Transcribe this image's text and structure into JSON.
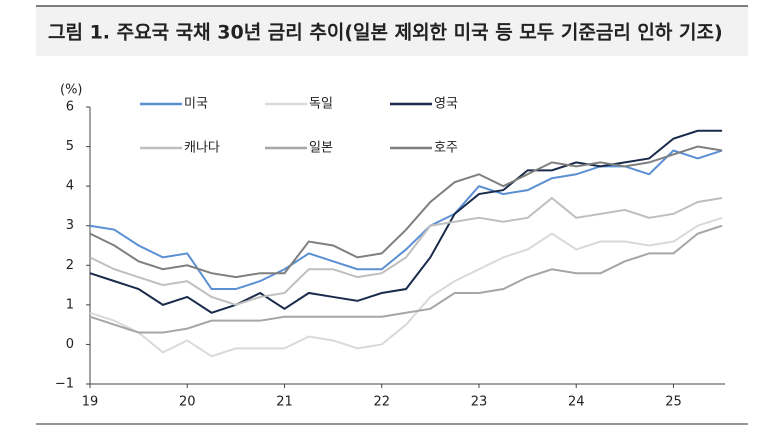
{
  "chart_data": {
    "type": "line",
    "title": "그림 1. 주요국 국채 30년 금리 추이(일본 제외한 미국 등 모두 기준금리 인하 기조)",
    "y_label": "(%)",
    "x": [
      19,
      19.25,
      19.5,
      19.75,
      20,
      20.25,
      20.5,
      20.75,
      21,
      21.25,
      21.5,
      21.75,
      22,
      22.25,
      22.5,
      22.75,
      23,
      23.25,
      23.5,
      23.75,
      24,
      24.25,
      24.5,
      24.75,
      25,
      25.25,
      25.5
    ],
    "xlim": [
      19,
      25.53
    ],
    "xticks": [
      19,
      20,
      21,
      22,
      23,
      24,
      25
    ],
    "ylim": [
      -1,
      6
    ],
    "yticks": [
      {
        "value": -1,
        "label": "−1"
      },
      0,
      1,
      2,
      3,
      4,
      5,
      6
    ],
    "series": [
      {
        "name": "미국",
        "color": "#5b8fd4",
        "values": [
          3.0,
          2.9,
          2.5,
          2.2,
          2.3,
          1.4,
          1.4,
          1.6,
          1.9,
          2.3,
          2.1,
          1.9,
          1.9,
          2.4,
          3.0,
          3.3,
          4.0,
          3.8,
          3.9,
          4.2,
          4.3,
          4.5,
          4.5,
          4.3,
          4.9,
          4.7,
          4.9
        ]
      },
      {
        "name": "독일",
        "color": "#d9d9d9",
        "values": [
          0.8,
          0.6,
          0.3,
          -0.2,
          0.1,
          -0.3,
          -0.1,
          -0.1,
          -0.1,
          0.2,
          0.1,
          -0.1,
          0.0,
          0.5,
          1.2,
          1.6,
          1.9,
          2.2,
          2.4,
          2.8,
          2.4,
          2.6,
          2.6,
          2.5,
          2.6,
          3.0,
          3.2
        ]
      },
      {
        "name": "영국",
        "color": "#1a2b4c",
        "values": [
          1.8,
          1.6,
          1.4,
          1.0,
          1.2,
          0.8,
          1.0,
          1.3,
          0.9,
          1.3,
          1.2,
          1.1,
          1.3,
          1.4,
          2.2,
          3.3,
          3.8,
          3.9,
          4.4,
          4.4,
          4.6,
          4.5,
          4.6,
          4.7,
          5.2,
          5.4,
          5.4
        ]
      },
      {
        "name": "캐나다",
        "color": "#bfbfbf",
        "values": [
          2.2,
          1.9,
          1.7,
          1.5,
          1.6,
          1.2,
          1.0,
          1.2,
          1.3,
          1.9,
          1.9,
          1.7,
          1.8,
          2.2,
          3.0,
          3.1,
          3.2,
          3.1,
          3.2,
          3.7,
          3.2,
          3.3,
          3.4,
          3.2,
          3.3,
          3.6,
          3.7
        ]
      },
      {
        "name": "일본",
        "color": "#a6a6a6",
        "values": [
          0.7,
          0.5,
          0.3,
          0.3,
          0.4,
          0.6,
          0.6,
          0.6,
          0.7,
          0.7,
          0.7,
          0.7,
          0.7,
          0.8,
          0.9,
          1.3,
          1.3,
          1.4,
          1.7,
          1.9,
          1.8,
          1.8,
          2.1,
          2.3,
          2.3,
          2.8,
          3.0
        ]
      },
      {
        "name": "호주",
        "color": "#7f7f7f",
        "values": [
          2.8,
          2.5,
          2.1,
          1.9,
          2.0,
          1.8,
          1.7,
          1.8,
          1.8,
          2.6,
          2.5,
          2.2,
          2.3,
          2.9,
          3.6,
          4.1,
          4.3,
          4.0,
          4.3,
          4.6,
          4.5,
          4.6,
          4.5,
          4.6,
          4.8,
          5.0,
          4.9
        ]
      }
    ]
  }
}
